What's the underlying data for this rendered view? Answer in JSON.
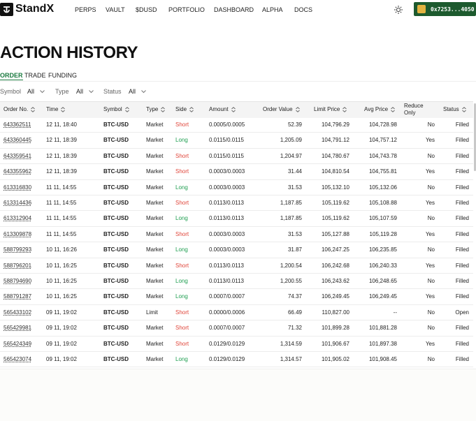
{
  "nav": {
    "logo": "StandX",
    "links": [
      "PERPS",
      "VAULT",
      "$DUSD",
      "PORTFOLIO",
      "DASHBOARD",
      "ALPHA",
      "DOCS"
    ],
    "wallet": "0x7253...4050"
  },
  "title": "ACTION HISTORY",
  "tabs": [
    "ORDER",
    "TRADE",
    "FUNDING"
  ],
  "filters": [
    {
      "label": "Symbol",
      "value": "All"
    },
    {
      "label": "Type",
      "value": "All"
    },
    {
      "label": "Status",
      "value": "All"
    }
  ],
  "side_color": {
    "Short": "#e0453a",
    "Long": "#1e9e50"
  },
  "table": {
    "headers": [
      "Order No.",
      "Time",
      "Symbol",
      "Type",
      "Side",
      "Amount",
      "Order Value",
      "Limit Price",
      "Avg Price",
      "Reduce Only",
      "Status"
    ],
    "rows": [
      [
        "643362511",
        "12 11, 18:40",
        "BTC-USD",
        "Market",
        "Short",
        "0.0005/0.0005",
        "52.39",
        "104,796.29",
        "104,728.98",
        "No",
        "Filled"
      ],
      [
        "643360445",
        "12 11, 18:39",
        "BTC-USD",
        "Market",
        "Long",
        "0.0115/0.0115",
        "1,205.09",
        "104,791.12",
        "104,757.12",
        "Yes",
        "Filled"
      ],
      [
        "643359541",
        "12 11, 18:39",
        "BTC-USD",
        "Market",
        "Short",
        "0.0115/0.0115",
        "1,204.97",
        "104,780.67",
        "104,743.78",
        "No",
        "Filled"
      ],
      [
        "643355962",
        "12 11, 18:39",
        "BTC-USD",
        "Market",
        "Short",
        "0.0003/0.0003",
        "31.44",
        "104,810.54",
        "104,755.81",
        "Yes",
        "Filled"
      ],
      [
        "613316830",
        "11 11, 14:55",
        "BTC-USD",
        "Market",
        "Long",
        "0.0003/0.0003",
        "31.53",
        "105,132.10",
        "105,132.06",
        "No",
        "Filled"
      ],
      [
        "613314436",
        "11 11, 14:55",
        "BTC-USD",
        "Market",
        "Short",
        "0.0113/0.0113",
        "1,187.85",
        "105,119.62",
        "105,108.88",
        "Yes",
        "Filled"
      ],
      [
        "613312904",
        "11 11, 14:55",
        "BTC-USD",
        "Market",
        "Long",
        "0.0113/0.0113",
        "1,187.85",
        "105,119.62",
        "105,107.59",
        "No",
        "Filled"
      ],
      [
        "613309878",
        "11 11, 14:55",
        "BTC-USD",
        "Market",
        "Short",
        "0.0003/0.0003",
        "31.53",
        "105,127.88",
        "105,119.28",
        "Yes",
        "Filled"
      ],
      [
        "588799293",
        "10 11, 16:26",
        "BTC-USD",
        "Market",
        "Long",
        "0.0003/0.0003",
        "31.87",
        "106,247.25",
        "106,235.85",
        "No",
        "Filled"
      ],
      [
        "588796201",
        "10 11, 16:25",
        "BTC-USD",
        "Market",
        "Short",
        "0.0113/0.0113",
        "1,200.54",
        "106,242.68",
        "106,240.33",
        "Yes",
        "Filled"
      ],
      [
        "588794690",
        "10 11, 16:25",
        "BTC-USD",
        "Market",
        "Long",
        "0.0113/0.0113",
        "1,200.55",
        "106,243.62",
        "106,248.65",
        "No",
        "Filled"
      ],
      [
        "588791287",
        "10 11, 16:25",
        "BTC-USD",
        "Market",
        "Long",
        "0.0007/0.0007",
        "74.37",
        "106,249.45",
        "106,249.45",
        "Yes",
        "Filled"
      ],
      [
        "565433102",
        "09 11, 19:02",
        "BTC-USD",
        "Limit",
        "Short",
        "0.0000/0.0006",
        "66.49",
        "110,827.00",
        "--",
        "No",
        "Open"
      ],
      [
        "565429981",
        "09 11, 19:02",
        "BTC-USD",
        "Market",
        "Short",
        "0.0007/0.0007",
        "71.32",
        "101,899.28",
        "101,881.28",
        "No",
        "Filled"
      ],
      [
        "565424349",
        "09 11, 19:02",
        "BTC-USD",
        "Market",
        "Short",
        "0.0129/0.0129",
        "1,314.59",
        "101,906.67",
        "101,897.38",
        "Yes",
        "Filled"
      ],
      [
        "565423074",
        "09 11, 19:02",
        "BTC-USD",
        "Market",
        "Long",
        "0.0129/0.0129",
        "1,314.57",
        "101,905.02",
        "101,908.45",
        "No",
        "Filled"
      ]
    ]
  }
}
